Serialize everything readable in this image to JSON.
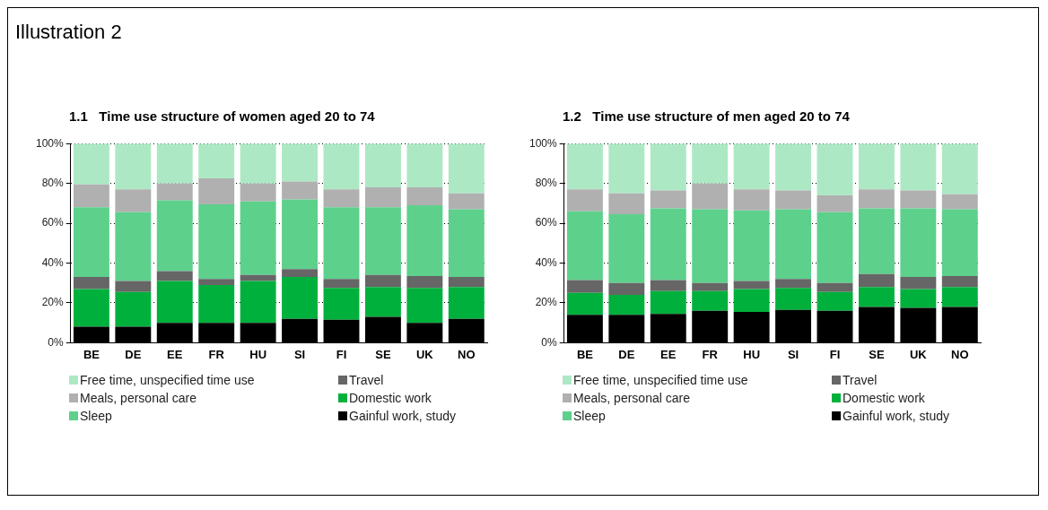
{
  "chart_data": [
    {
      "type": "bar",
      "title": "1.1   Time use structure of women aged 20 to 74",
      "annotations": [
        "Illustration 2"
      ],
      "stacked": true,
      "categories": [
        "BE",
        "DE",
        "EE",
        "FR",
        "HU",
        "SI",
        "FI",
        "SE",
        "UK",
        "NO"
      ],
      "ylim": [
        0,
        100
      ],
      "yticks": [
        {
          "value": 0,
          "label": "0%"
        },
        {
          "value": 20,
          "label": "20%"
        },
        {
          "value": 40,
          "label": "40%"
        },
        {
          "value": 60,
          "label": "60%"
        },
        {
          "value": 80,
          "label": "80%"
        },
        {
          "value": 100,
          "label": "100%"
        }
      ],
      "grid": "y",
      "line_style": "dotted",
      "legend": "bottom",
      "series": [
        {
          "name": "Gainful work, study",
          "color": "#000000",
          "values": [
            8,
            8,
            10,
            10,
            10,
            12,
            11.5,
            13,
            10,
            12
          ]
        },
        {
          "name": "Domestic work",
          "color": "#00b03c",
          "values": [
            19,
            17.5,
            21,
            19,
            21,
            21,
            16,
            15,
            17.5,
            16
          ]
        },
        {
          "name": "Travel",
          "color": "#666666",
          "values": [
            6,
            5.5,
            5,
            3,
            3,
            4,
            4.5,
            6,
            6,
            5
          ]
        },
        {
          "name": "Sleep",
          "color": "#5dd08c",
          "values": [
            35,
            34.5,
            35.5,
            37.5,
            37,
            35,
            36,
            34,
            35.5,
            34
          ]
        },
        {
          "name": "Meals, personal care",
          "color": "#b0b0b0",
          "values": [
            11.5,
            11.5,
            8.5,
            13,
            9,
            9,
            9,
            10,
            9,
            8
          ]
        },
        {
          "name": "Free time, unspecified time use",
          "color": "#ade8c4",
          "values": [
            20.5,
            23,
            20,
            17.5,
            20,
            19,
            23,
            22,
            22,
            25
          ]
        }
      ]
    },
    {
      "type": "bar",
      "title": "1.2   Time use structure of men aged 20 to 74",
      "stacked": true,
      "categories": [
        "BE",
        "DE",
        "EE",
        "FR",
        "HU",
        "SI",
        "FI",
        "SE",
        "UK",
        "NO"
      ],
      "ylim": [
        0,
        100
      ],
      "yticks": [
        {
          "value": 0,
          "label": "0%"
        },
        {
          "value": 20,
          "label": "20%"
        },
        {
          "value": 40,
          "label": "40%"
        },
        {
          "value": 60,
          "label": "60%"
        },
        {
          "value": 80,
          "label": "80%"
        },
        {
          "value": 100,
          "label": "100%"
        }
      ],
      "grid": "y",
      "line_style": "dotted",
      "legend": "bottom",
      "series": [
        {
          "name": "Gainful work, study",
          "color": "#000000",
          "values": [
            14,
            14,
            14.5,
            16,
            15.5,
            16.5,
            16,
            18,
            17.5,
            18
          ]
        },
        {
          "name": "Domestic work",
          "color": "#00b03c",
          "values": [
            11,
            10,
            11.5,
            10,
            11.5,
            11,
            9.5,
            10,
            9.5,
            10
          ]
        },
        {
          "name": "Travel",
          "color": "#666666",
          "values": [
            6.5,
            6,
            5.5,
            4,
            4,
            4.5,
            4.5,
            6.5,
            6,
            5.5
          ]
        },
        {
          "name": "Sleep",
          "color": "#5dd08c",
          "values": [
            34.5,
            34.5,
            36,
            37,
            35.5,
            35,
            35.5,
            33,
            34.5,
            33.5
          ]
        },
        {
          "name": "Meals, personal care",
          "color": "#b0b0b0",
          "values": [
            11,
            10.5,
            9,
            13,
            10.5,
            9.5,
            8.5,
            9.5,
            9,
            7.5
          ]
        },
        {
          "name": "Free time, unspecified time use",
          "color": "#ade8c4",
          "values": [
            23,
            25,
            23.5,
            20,
            23,
            23.5,
            26,
            23,
            23.5,
            25.5
          ]
        }
      ]
    }
  ]
}
